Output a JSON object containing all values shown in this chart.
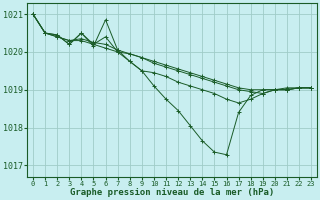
{
  "background_color": "#c8eef0",
  "plot_background": "#c8eef0",
  "grid_color": "#a0ccc8",
  "line_color": "#1a5c28",
  "xlim": [
    -0.5,
    23.5
  ],
  "ylim": [
    1016.7,
    1021.3
  ],
  "yticks": [
    1017,
    1018,
    1019,
    1020,
    1021
  ],
  "xticks": [
    0,
    1,
    2,
    3,
    4,
    5,
    6,
    7,
    8,
    9,
    10,
    11,
    12,
    13,
    14,
    15,
    16,
    17,
    18,
    19,
    20,
    21,
    22,
    23
  ],
  "xlabel": "Graphe pression niveau de la mer (hPa)",
  "xlabel_fontsize": 6.5,
  "ytick_fontsize": 6.0,
  "xtick_fontsize": 5.0,
  "series": [
    {
      "x": [
        0,
        1,
        2,
        3,
        4,
        5,
        6,
        7,
        8,
        9,
        10,
        11,
        12,
        13,
        14,
        15,
        16,
        17,
        18,
        19,
        20,
        21,
        22,
        23
      ],
      "y": [
        1021.0,
        1020.5,
        1020.45,
        1020.2,
        1020.5,
        1020.15,
        1020.85,
        1020.05,
        1019.75,
        1019.5,
        1019.1,
        1018.75,
        1018.45,
        1018.05,
        1017.65,
        1017.35,
        1017.28,
        1018.4,
        1018.85,
        1019.0,
        1019.0,
        1019.0,
        1019.05,
        1019.05
      ]
    },
    {
      "x": [
        0,
        1,
        2,
        3,
        4,
        5,
        6,
        7,
        8,
        9,
        10,
        11,
        12,
        13,
        14,
        15,
        16,
        17,
        18,
        19,
        20,
        21,
        22,
        23
      ],
      "y": [
        1021.0,
        1020.5,
        1020.45,
        1020.2,
        1020.5,
        1020.2,
        1020.4,
        1020.0,
        1019.75,
        1019.5,
        1019.45,
        1019.35,
        1019.2,
        1019.1,
        1019.0,
        1018.9,
        1018.75,
        1018.65,
        1018.75,
        1018.9,
        1019.0,
        1019.0,
        1019.05,
        1019.05
      ]
    },
    {
      "x": [
        0,
        1,
        2,
        3,
        4,
        5,
        6,
        7,
        8,
        9,
        10,
        11,
        12,
        13,
        14,
        15,
        16,
        17,
        18,
        19,
        20,
        21,
        22,
        23
      ],
      "y": [
        1021.0,
        1020.5,
        1020.4,
        1020.3,
        1020.35,
        1020.25,
        1020.2,
        1020.05,
        1019.95,
        1019.85,
        1019.7,
        1019.6,
        1019.5,
        1019.4,
        1019.3,
        1019.2,
        1019.1,
        1019.0,
        1018.95,
        1018.9,
        1019.0,
        1019.0,
        1019.05,
        1019.05
      ]
    },
    {
      "x": [
        0,
        1,
        2,
        3,
        4,
        5,
        6,
        7,
        8,
        9,
        10,
        11,
        12,
        13,
        14,
        15,
        16,
        17,
        18,
        19,
        20,
        21,
        22,
        23
      ],
      "y": [
        1021.0,
        1020.5,
        1020.4,
        1020.3,
        1020.3,
        1020.2,
        1020.1,
        1020.0,
        1019.95,
        1019.85,
        1019.75,
        1019.65,
        1019.55,
        1019.45,
        1019.35,
        1019.25,
        1019.15,
        1019.05,
        1019.0,
        1019.0,
        1019.0,
        1019.05,
        1019.05,
        1019.05
      ]
    }
  ]
}
